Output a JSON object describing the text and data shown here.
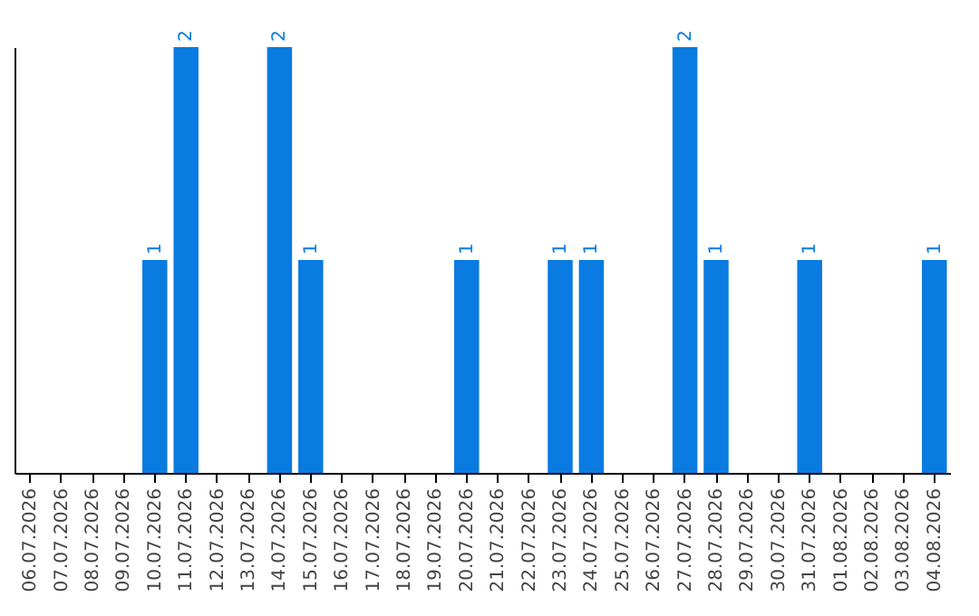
{
  "chart_data": {
    "type": "bar",
    "categories": [
      "06.07.2026",
      "07.07.2026",
      "08.07.2026",
      "09.07.2026",
      "10.07.2026",
      "11.07.2026",
      "12.07.2026",
      "13.07.2026",
      "14.07.2026",
      "15.07.2026",
      "16.07.2026",
      "17.07.2026",
      "18.07.2026",
      "19.07.2026",
      "20.07.2026",
      "21.07.2026",
      "22.07.2026",
      "23.07.2026",
      "24.07.2026",
      "25.07.2026",
      "26.07.2026",
      "27.07.2026",
      "28.07.2026",
      "29.07.2026",
      "30.07.2026",
      "31.07.2026",
      "01.08.2026",
      "02.08.2026",
      "03.08.2026",
      "04.08.2026"
    ],
    "values": [
      0,
      0,
      0,
      0,
      1,
      2,
      0,
      0,
      2,
      1,
      0,
      0,
      0,
      0,
      1,
      0,
      0,
      1,
      1,
      0,
      0,
      2,
      1,
      0,
      0,
      1,
      0,
      0,
      0,
      1
    ],
    "value_labels": [
      null,
      null,
      null,
      null,
      "1",
      "2",
      null,
      null,
      "2",
      "1",
      null,
      null,
      null,
      null,
      "1",
      null,
      null,
      "1",
      "1",
      null,
      null,
      "2",
      "1",
      null,
      null,
      "1",
      null,
      null,
      null,
      "1"
    ],
    "color": "#0a7be0",
    "grid": false
  }
}
